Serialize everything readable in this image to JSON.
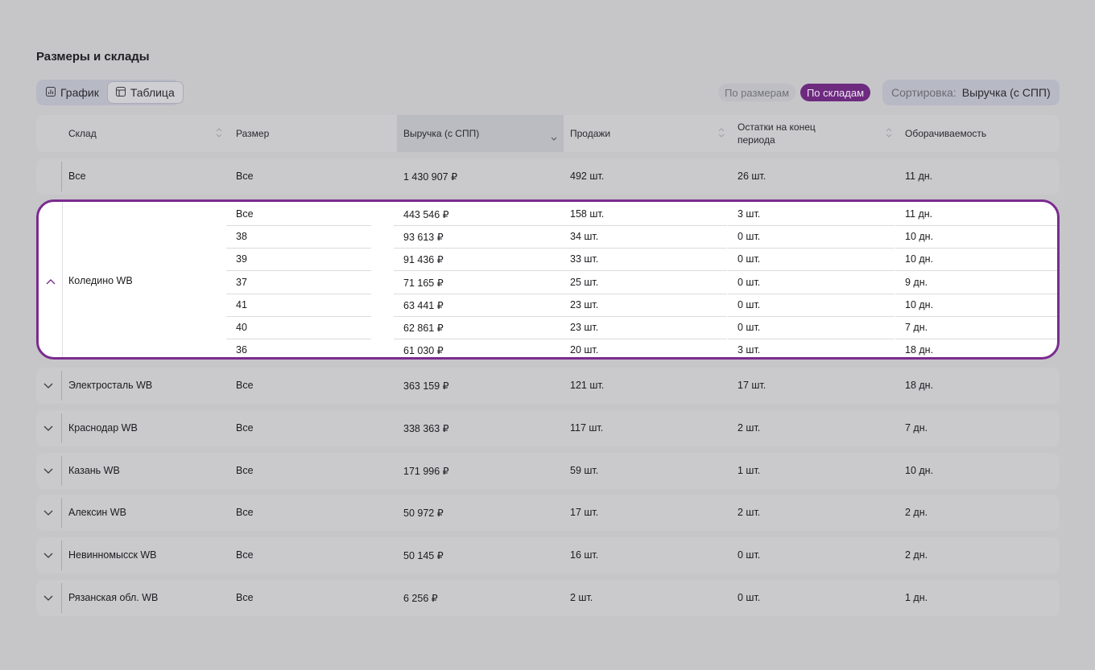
{
  "title": "Размеры и склады",
  "view_toggle": {
    "chart_label": "График",
    "table_label": "Таблица",
    "active": "table"
  },
  "segments": {
    "by_sizes": "По размерам",
    "by_warehouses": "По складам",
    "active": "by_warehouses"
  },
  "sort": {
    "label": "Сортировка:",
    "value": "Выручка (с СПП)"
  },
  "colors": {
    "accent": "#7b2b8f",
    "pill_active": "#6d2a7f",
    "overlay_bg": "#c6c6c9"
  },
  "columns": [
    "Склад",
    "Размер",
    "Выручка (с СПП)",
    "Продажи",
    "Остатки на конец",
    "периода",
    "Оборачиваемость"
  ],
  "total_row": {
    "warehouse": "Все",
    "size": "Все",
    "revenue": "1 430 907 ₽",
    "sales": "492 шт.",
    "stock": "26 шт.",
    "turnover": "11 дн."
  },
  "expanded": {
    "warehouse": "Коледино WB",
    "rows": [
      {
        "size": "Все",
        "revenue": "443 546 ₽",
        "sales": "158 шт.",
        "stock": "3 шт.",
        "turnover": "11 дн."
      },
      {
        "size": "38",
        "revenue": "93 613 ₽",
        "sales": "34 шт.",
        "stock": "0 шт.",
        "turnover": "10 дн."
      },
      {
        "size": "39",
        "revenue": "91 436 ₽",
        "sales": "33 шт.",
        "stock": "0 шт.",
        "turnover": "10 дн."
      },
      {
        "size": "37",
        "revenue": "71 165 ₽",
        "sales": "25 шт.",
        "stock": "0 шт.",
        "turnover": "9 дн."
      },
      {
        "size": "41",
        "revenue": "63 441 ₽",
        "sales": "23 шт.",
        "stock": "0 шт.",
        "turnover": "10 дн."
      },
      {
        "size": "40",
        "revenue": "62 861 ₽",
        "sales": "23 шт.",
        "stock": "0 шт.",
        "turnover": "7 дн."
      },
      {
        "size": "36",
        "revenue": "61 030 ₽",
        "sales": "20 шт.",
        "stock": "3 шт.",
        "turnover": "18 дн."
      }
    ]
  },
  "warehouses": [
    {
      "warehouse": "Электросталь WB",
      "size": "Все",
      "revenue": "363 159 ₽",
      "sales": "121 шт.",
      "stock": "17 шт.",
      "turnover": "18 дн."
    },
    {
      "warehouse": "Краснодар WB",
      "size": "Все",
      "revenue": "338 363 ₽",
      "sales": "117 шт.",
      "stock": "2 шт.",
      "turnover": "7 дн."
    },
    {
      "warehouse": "Казань WB",
      "size": "Все",
      "revenue": "171 996 ₽",
      "sales": "59 шт.",
      "stock": "1 шт.",
      "turnover": "10 дн."
    },
    {
      "warehouse": "Алексин WB",
      "size": "Все",
      "revenue": "50 972 ₽",
      "sales": "17 шт.",
      "stock": "2 шт.",
      "turnover": "2 дн."
    },
    {
      "warehouse": "Невинномысск WB",
      "size": "Все",
      "revenue": "50 145 ₽",
      "sales": "16 шт.",
      "stock": "0 шт.",
      "turnover": "2 дн."
    },
    {
      "warehouse": "Рязанская обл. WB",
      "size": "Все",
      "revenue": "6 256 ₽",
      "sales": "2 шт.",
      "stock": "0 шт.",
      "turnover": "1 дн."
    }
  ]
}
